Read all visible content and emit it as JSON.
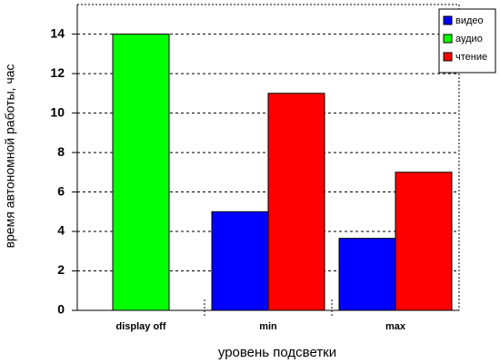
{
  "chart_data": {
    "type": "bar",
    "y_label": "время автономной работы, час",
    "x_label": "уровень подсветки",
    "categories": [
      "display off",
      "min",
      "max"
    ],
    "series": [
      {
        "name": "видео",
        "color": "#0000ff",
        "values": [
          null,
          5,
          3.65
        ]
      },
      {
        "name": "аудио",
        "color": "#00ff00",
        "values": [
          14,
          null,
          null
        ]
      },
      {
        "name": "чтение",
        "color": "#ff0000",
        "values": [
          null,
          11,
          7
        ]
      }
    ],
    "ylim": [
      0,
      15.5
    ],
    "yticks": [
      0,
      2,
      4,
      6,
      8,
      10,
      12,
      14
    ],
    "grid": true,
    "legend": "top-right"
  }
}
